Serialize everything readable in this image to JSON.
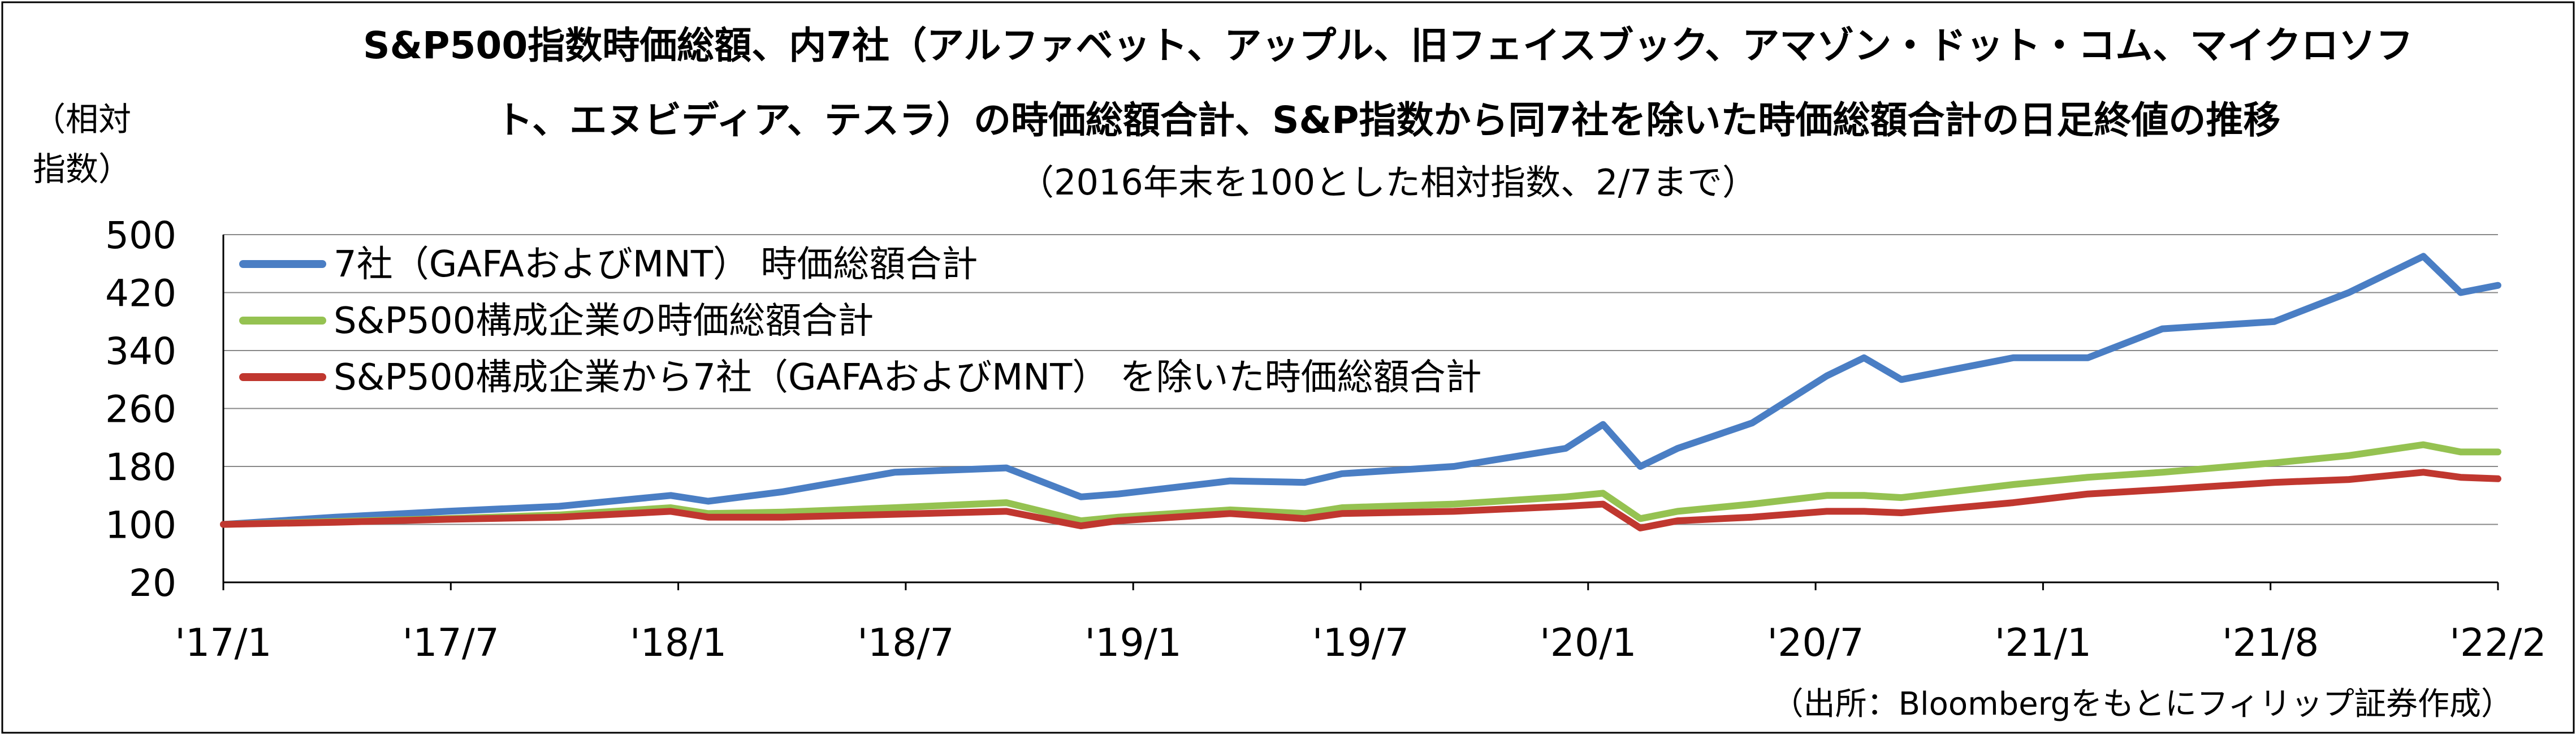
{
  "title_line1": "S&P500指数時価総額、内7社（アルファベット、アップル、旧フェイスブック、アマゾン・ドット・コム、マイクロソフ",
  "title_line2": "ト、エヌビディア、テスラ）の時価総額合計、S&P指数から同7社を除いた時価総額合計の日足終値の推移",
  "subtitle": "（2016年末を100とした相対指数、2/7まで）",
  "ylabel_line1": "（相対",
  "ylabel_line2": "指数）",
  "source": "（出所：Bloombergをもとにフィリップ証券作成）",
  "colors": {
    "blue": "#4a7ec4",
    "green": "#95c251",
    "red": "#c0372f",
    "grid": "#888888",
    "axis": "#000000"
  },
  "chart_data": {
    "type": "line",
    "grid": true,
    "legend_position": "top-left",
    "x_tick_labels": [
      "'17/1",
      "'17/7",
      "'18/1",
      "'18/7",
      "'19/1",
      "'19/7",
      "'20/1",
      "'20/7",
      "'21/1",
      "'21/8",
      "'22/2"
    ],
    "y_tick_labels": [
      "500",
      "420",
      "340",
      "260",
      "180",
      "100",
      "20"
    ],
    "ylim": [
      20,
      500
    ],
    "y_ticks": [
      20,
      100,
      180,
      260,
      340,
      420,
      500
    ],
    "x": [
      "2017-01",
      "2017-04",
      "2017-07",
      "2017-10",
      "2018-01",
      "2018-02",
      "2018-04",
      "2018-07",
      "2018-10",
      "2018-12",
      "2019-01",
      "2019-04",
      "2019-06",
      "2019-07",
      "2019-10",
      "2020-01",
      "2020-02",
      "2020-03",
      "2020-04",
      "2020-06",
      "2020-08",
      "2020-09",
      "2020-10",
      "2021-01",
      "2021-03",
      "2021-05",
      "2021-08",
      "2021-10",
      "2021-12",
      "2022-01",
      "2022-02"
    ],
    "series": [
      {
        "name": "7社（GAFAおよびMNT） 時価総額合計",
        "color": "#4a7ec4",
        "values": [
          100,
          110,
          118,
          125,
          140,
          132,
          145,
          172,
          178,
          138,
          142,
          160,
          158,
          170,
          180,
          205,
          238,
          180,
          205,
          240,
          305,
          330,
          300,
          330,
          330,
          370,
          380,
          420,
          470,
          420,
          430
        ]
      },
      {
        "name": "S&P500構成企業の時価総額合計",
        "color": "#95c251",
        "values": [
          100,
          104,
          108,
          113,
          123,
          115,
          117,
          123,
          130,
          105,
          110,
          120,
          115,
          123,
          128,
          138,
          143,
          108,
          118,
          128,
          140,
          140,
          137,
          155,
          165,
          172,
          185,
          195,
          210,
          200,
          200
        ]
      },
      {
        "name": "S&P500構成企業から7社（GAFAおよびMNT） を除いた時価総額合計",
        "color": "#c0372f",
        "values": [
          100,
          103,
          107,
          110,
          118,
          110,
          110,
          114,
          118,
          98,
          105,
          115,
          108,
          115,
          118,
          125,
          128,
          95,
          105,
          110,
          118,
          118,
          116,
          130,
          142,
          148,
          158,
          162,
          172,
          165,
          163
        ]
      }
    ]
  }
}
